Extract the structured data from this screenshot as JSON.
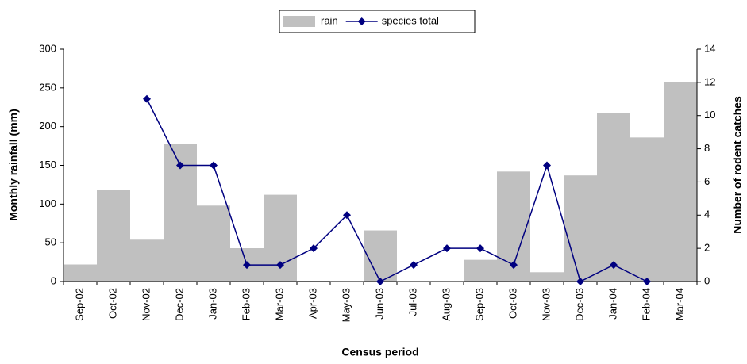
{
  "chart_data": {
    "type": "bar",
    "x_label": "Census period",
    "y_label": "Monthly rainfall (mm)",
    "y2_label": "Number of rodent catches",
    "categories": [
      "Sep-02",
      "Oct-02",
      "Nov-02",
      "Dec-02",
      "Jan-03",
      "Feb-03",
      "Mar-03",
      "Apr-03",
      "May-03",
      "Jun-03",
      "Jul-03",
      "Aug-03",
      "Sep-03",
      "Oct-03",
      "Nov-03",
      "Dec-03",
      "Jan-04",
      "Feb-04",
      "Mar-04"
    ],
    "series": [
      {
        "name": "rain",
        "type": "bar",
        "color": "#c0c0c0",
        "values": [
          22,
          118,
          54,
          178,
          98,
          43,
          112,
          1,
          0,
          66,
          0,
          0,
          28,
          142,
          12,
          137,
          218,
          186,
          257
        ]
      },
      {
        "name": "species total",
        "type": "line",
        "axis": "y2",
        "color": "#000080",
        "values": [
          null,
          null,
          11,
          7,
          7,
          1,
          1,
          2,
          4,
          0,
          1,
          2,
          2,
          1,
          7,
          0,
          1,
          0,
          null
        ]
      }
    ],
    "ylim": [
      0,
      300
    ],
    "yticks": [
      0,
      50,
      100,
      150,
      200,
      250,
      300
    ],
    "y2lim": [
      0,
      14
    ],
    "y2ticks": [
      0,
      2,
      4,
      6,
      8,
      10,
      12,
      14
    ],
    "grid": false,
    "legend": "top"
  }
}
